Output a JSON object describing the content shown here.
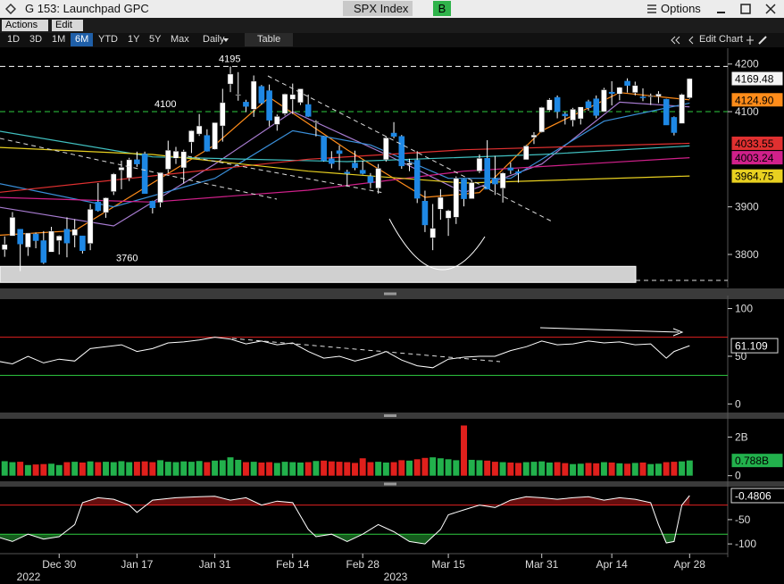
{
  "header": {
    "title": "G 153: Launchpad GPC",
    "ticker": "SPX Index",
    "button": "B",
    "options": "Options"
  },
  "toolbar": {
    "menus": [
      "Actions",
      "Edit"
    ],
    "periods": [
      "1D",
      "3D",
      "1M",
      "6M",
      "YTD",
      "1Y",
      "5Y",
      "Max"
    ],
    "selected": "6M",
    "interval": "Daily",
    "table": "Table",
    "edit_chart": "Edit Chart"
  },
  "time_axis": {
    "xlim": [
      0.4,
      90.8
    ],
    "xticks": [
      {
        "value": 8,
        "label": "Dec 30"
      },
      {
        "value": 18,
        "label": "Jan 17"
      },
      {
        "value": 28,
        "label": "Jan 31"
      },
      {
        "value": 38,
        "label": "Feb 14"
      },
      {
        "value": 47,
        "label": "Feb 28"
      },
      {
        "value": 58,
        "label": "Mar 15"
      },
      {
        "value": 70,
        "label": "Mar 31"
      },
      {
        "value": 79,
        "label": "Apr 14"
      },
      {
        "value": 89,
        "label": "Apr 28"
      }
    ],
    "years": [
      2022,
      2023
    ]
  },
  "chart_data": [
    {
      "type": "candlestick",
      "ylim": [
        3738,
        4222
      ],
      "yticks": [
        3800,
        3900,
        4100,
        4200
      ],
      "up_color": "#ffffff",
      "down_color": "#1e88e5",
      "marker": 4169.48,
      "levels": [
        {
          "value": 4195,
          "color": "#ffffff"
        },
        {
          "value": 4100,
          "color": "#2ecc40"
        },
        {
          "value": 3760,
          "color": "#cfcfcf"
        }
      ],
      "candles": [
        [
          3853,
          3854,
          3800,
          3818
        ],
        [
          3810,
          3838,
          3795,
          3821
        ],
        [
          3839,
          3889,
          3839,
          3878
        ],
        [
          3853,
          3853,
          3765,
          3822
        ],
        [
          3815,
          3845,
          3797,
          3845
        ],
        [
          3843,
          3846,
          3813,
          3829
        ],
        [
          3829,
          3849,
          3780,
          3783
        ],
        [
          3805,
          3858,
          3805,
          3849
        ],
        [
          3829,
          3840,
          3800,
          3839
        ],
        [
          3853,
          3878,
          3794,
          3824
        ],
        [
          3840,
          3874,
          3815,
          3853
        ],
        [
          3839,
          3839,
          3802,
          3808
        ],
        [
          3823,
          3906,
          3809,
          3895
        ],
        [
          3910,
          3950,
          3890,
          3892
        ],
        [
          3888,
          3920,
          3877,
          3919
        ],
        [
          3932,
          3971,
          3925,
          3969
        ],
        [
          3977,
          3997,
          3937,
          3983
        ],
        [
          3961,
          4003,
          3954,
          3999
        ],
        [
          3999,
          4016,
          3984,
          3990
        ],
        [
          4011,
          4016,
          3928,
          3928
        ],
        [
          3912,
          3913,
          3886,
          3898
        ],
        [
          3909,
          3972,
          3899,
          3972
        ],
        [
          3979,
          4039,
          3971,
          4019
        ],
        [
          4002,
          4026,
          3990,
          4017
        ],
        [
          3982,
          4020,
          3949,
          4016
        ],
        [
          4036,
          4061,
          4013,
          4060
        ],
        [
          4053,
          4095,
          4049,
          4070
        ],
        [
          4050,
          4063,
          4016,
          4017
        ],
        [
          4021,
          4077,
          4020,
          4077
        ],
        [
          4070,
          4148,
          4037,
          4119
        ],
        [
          4158,
          4195,
          4141,
          4179
        ],
        [
          4136,
          4183,
          4123,
          4136
        ],
        [
          4120,
          4125,
          4099,
          4111
        ],
        [
          4105,
          4176,
          4089,
          4164
        ],
        [
          4153,
          4156,
          4115,
          4118
        ],
        [
          4144,
          4157,
          4069,
          4082
        ],
        [
          4073,
          4094,
          4060,
          4090
        ],
        [
          4096,
          4138,
          4092,
          4137
        ],
        [
          4126,
          4159,
          4095,
          4136
        ],
        [
          4119,
          4148,
          4114,
          4148
        ],
        [
          4115,
          4136,
          4089,
          4090
        ],
        [
          4077,
          4082,
          4048,
          4079
        ],
        [
          4047,
          4048,
          3995,
          3997
        ],
        [
          4001,
          4017,
          3981,
          3991
        ],
        [
          4018,
          4029,
          3977,
          4012
        ],
        [
          3973,
          3978,
          3943,
          3970
        ],
        [
          3992,
          4018,
          3977,
          3982
        ],
        [
          3977,
          3997,
          3968,
          3970
        ],
        [
          3964,
          3971,
          3939,
          3951
        ],
        [
          3939,
          3990,
          3928,
          3981
        ],
        [
          3999,
          4048,
          3995,
          4045
        ],
        [
          4055,
          4078,
          4044,
          4048
        ],
        [
          4048,
          4051,
          3980,
          3986
        ],
        [
          3988,
          4001,
          3975,
          3992
        ],
        [
          3998,
          4017,
          3908,
          3918
        ],
        [
          3912,
          3934,
          3847,
          3862
        ],
        [
          3835,
          3906,
          3809,
          3855
        ],
        [
          3895,
          3937,
          3873,
          3920
        ],
        [
          3876,
          3894,
          3839,
          3892
        ],
        [
          3878,
          3964,
          3864,
          3960
        ],
        [
          3958,
          3959,
          3901,
          3917
        ],
        [
          3917,
          3956,
          3917,
          3951
        ],
        [
          3975,
          4010,
          3971,
          4002
        ],
        [
          4002,
          4040,
          3937,
          3937
        ],
        [
          3959,
          4007,
          3925,
          3948
        ],
        [
          3939,
          3973,
          3909,
          3971
        ],
        [
          3982,
          3993,
          3969,
          3977
        ],
        [
          3974,
          3979,
          3951,
          3971
        ],
        [
          3999,
          4030,
          3999,
          4028
        ],
        [
          4046,
          4057,
          4032,
          4051
        ],
        [
          4057,
          4110,
          4056,
          4109
        ],
        [
          4103,
          4128,
          4101,
          4125
        ],
        [
          4130,
          4134,
          4086,
          4100
        ],
        [
          4095,
          4099,
          4073,
          4091
        ],
        [
          4082,
          4108,
          4069,
          4105
        ],
        [
          4085,
          4110,
          4073,
          4110
        ],
        [
          4121,
          4125,
          4102,
          4108
        ],
        [
          4127,
          4134,
          4086,
          4092
        ],
        [
          4100,
          4150,
          4099,
          4146
        ],
        [
          4141,
          4164,
          4113,
          4138
        ],
        [
          4137,
          4152,
          4124,
          4151
        ],
        [
          4164,
          4170,
          4140,
          4155
        ],
        [
          4140,
          4163,
          4134,
          4155
        ],
        [
          4131,
          4149,
          4122,
          4130
        ],
        [
          4132,
          4138,
          4114,
          4133
        ],
        [
          4132,
          4143,
          4118,
          4137
        ],
        [
          4126,
          4127,
          4072,
          4072
        ],
        [
          4088,
          4090,
          4050,
          4056
        ],
        [
          4075,
          4138,
          4075,
          4136
        ],
        [
          4129,
          4170,
          4127,
          4169.48
        ]
      ],
      "series": [
        {
          "color": "#ff8c1a",
          "x": [
            0,
            10,
            20,
            28,
            35,
            45,
            55,
            62,
            70,
            80,
            89
          ],
          "values": [
            3840,
            3850,
            3950,
            4030,
            4130,
            4020,
            3920,
            3930,
            4060,
            4140,
            4124.9
          ],
          "marker": {
            "value": 4124.9,
            "label": "4124.90"
          }
        },
        {
          "color": "#a77bd0",
          "x": [
            0,
            15,
            28,
            38,
            50,
            60,
            70,
            80,
            89
          ],
          "values": [
            3900,
            3860,
            3990,
            4100,
            4010,
            3930,
            3990,
            4120,
            4110
          ]
        },
        {
          "color": "#3a8fd9",
          "x": [
            0,
            15,
            28,
            38,
            48,
            58,
            66,
            78,
            89
          ],
          "values": [
            3950,
            3900,
            3960,
            4060,
            4030,
            3960,
            3960,
            4080,
            4118
          ]
        },
        {
          "color": "#40c0c0",
          "x": [
            0,
            20,
            45,
            70,
            89
          ],
          "values": [
            4060,
            4005,
            3995,
            4010,
            4028
          ]
        },
        {
          "color": "#e03030",
          "x": [
            0,
            20,
            40,
            60,
            89
          ],
          "values": [
            3930,
            3965,
            4000,
            4020,
            4033.55
          ],
          "marker": {
            "value": 4033.55,
            "label": "4033.55"
          }
        },
        {
          "color": "#d0208a",
          "x": [
            0,
            20,
            40,
            60,
            89
          ],
          "values": [
            3920,
            3910,
            3935,
            3975,
            4003.24
          ],
          "marker": {
            "value": 4003.24,
            "label": "4003.24"
          }
        },
        {
          "color": "#e8d020",
          "x": [
            0,
            20,
            40,
            60,
            89
          ],
          "values": [
            4025,
            4010,
            3975,
            3950,
            3964.75
          ],
          "marker": {
            "value": 3964.75,
            "label": "3964.75"
          }
        }
      ]
    },
    {
      "type": "line",
      "ylim": [
        -9,
        108
      ],
      "yticks": [
        0,
        50,
        100
      ],
      "levels": [
        {
          "value": 70,
          "color": "#e02020"
        },
        {
          "value": 30,
          "color": "#2ecc40"
        }
      ],
      "marker": 61.109,
      "color": "#ffffff",
      "x": [
        0,
        2,
        4,
        6,
        8,
        10,
        12,
        14,
        16,
        18,
        20,
        22,
        24,
        26,
        28,
        30,
        32,
        34,
        36,
        38,
        40,
        42,
        44,
        46,
        48,
        50,
        52,
        54,
        56,
        58,
        60,
        62,
        64,
        66,
        68,
        70,
        72,
        74,
        76,
        78,
        80,
        82,
        84,
        86,
        87,
        88,
        89
      ],
      "values": [
        45,
        42,
        50,
        43,
        47,
        45,
        58,
        60,
        62,
        55,
        58,
        64,
        65,
        67,
        70,
        68,
        63,
        66,
        62,
        64,
        55,
        48,
        50,
        45,
        49,
        55,
        46,
        40,
        38,
        47,
        49,
        50,
        50,
        56,
        60,
        66,
        62,
        63,
        66,
        64,
        65,
        62,
        63,
        48,
        55,
        58,
        61.109
      ]
    },
    {
      "type": "bar",
      "ylim": [
        -0.2,
        2.9
      ],
      "yticks": [
        0,
        {
          "value": 2,
          "label": "2B"
        }
      ],
      "up_color": "#22b14c",
      "down_color": "#e0201c",
      "marker": {
        "value": 0.788,
        "label": "0.788B"
      },
      "values": [
        0.82,
        0.75,
        0.7,
        0.72,
        0.55,
        0.58,
        0.6,
        0.62,
        0.55,
        0.7,
        0.72,
        0.68,
        0.74,
        0.7,
        0.72,
        0.7,
        0.75,
        0.7,
        0.72,
        0.74,
        0.7,
        0.8,
        0.72,
        0.7,
        0.74,
        0.72,
        0.76,
        0.7,
        0.78,
        0.8,
        0.95,
        0.82,
        0.7,
        0.72,
        0.68,
        0.7,
        0.66,
        0.72,
        0.7,
        0.68,
        0.7,
        0.76,
        0.78,
        0.74,
        0.72,
        0.7,
        0.66,
        0.9,
        0.7,
        0.72,
        0.68,
        0.7,
        0.8,
        0.78,
        0.85,
        0.92,
        0.95,
        0.9,
        0.85,
        0.8,
        2.6,
        0.82,
        0.8,
        0.78,
        0.72,
        0.7,
        0.68,
        0.66,
        0.7,
        0.72,
        0.74,
        0.68,
        0.7,
        0.65,
        0.6,
        0.62,
        0.66,
        0.64,
        0.7,
        0.68,
        0.64,
        0.62,
        0.66,
        0.68,
        0.6,
        0.62,
        0.7,
        0.72,
        0.74,
        0.788
      ]
    },
    {
      "type": "area",
      "ylim": [
        -120,
        16
      ],
      "yticks": [
        -50,
        -100
      ],
      "levels": [
        {
          "value": -20,
          "color": "#e02020"
        },
        {
          "value": -80,
          "color": "#2ecc40"
        }
      ],
      "marker": -0.4806,
      "color": "#ffffff",
      "x": [
        0,
        2,
        4,
        6,
        8,
        10,
        11,
        13,
        15,
        17,
        18,
        20,
        23,
        26,
        28,
        30,
        32,
        34,
        36,
        38,
        40,
        41,
        43,
        45,
        47,
        49,
        51,
        53,
        55,
        57,
        58,
        60,
        62,
        64,
        66,
        68,
        70,
        72,
        74,
        76,
        78,
        80,
        82,
        84,
        85,
        86,
        87,
        88,
        89
      ],
      "values": [
        -85,
        -95,
        -80,
        -90,
        -85,
        -60,
        -15,
        -5,
        -8,
        -20,
        -35,
        -10,
        -5,
        -3,
        -2,
        -10,
        -5,
        -20,
        -12,
        -15,
        -70,
        -85,
        -80,
        -95,
        -80,
        -60,
        -75,
        -95,
        -100,
        -70,
        -40,
        -30,
        -20,
        -25,
        -10,
        -3,
        -5,
        -8,
        -5,
        -3,
        -10,
        -5,
        -8,
        -15,
        -60,
        -98,
        -95,
        -20,
        -0.4806
      ]
    }
  ]
}
